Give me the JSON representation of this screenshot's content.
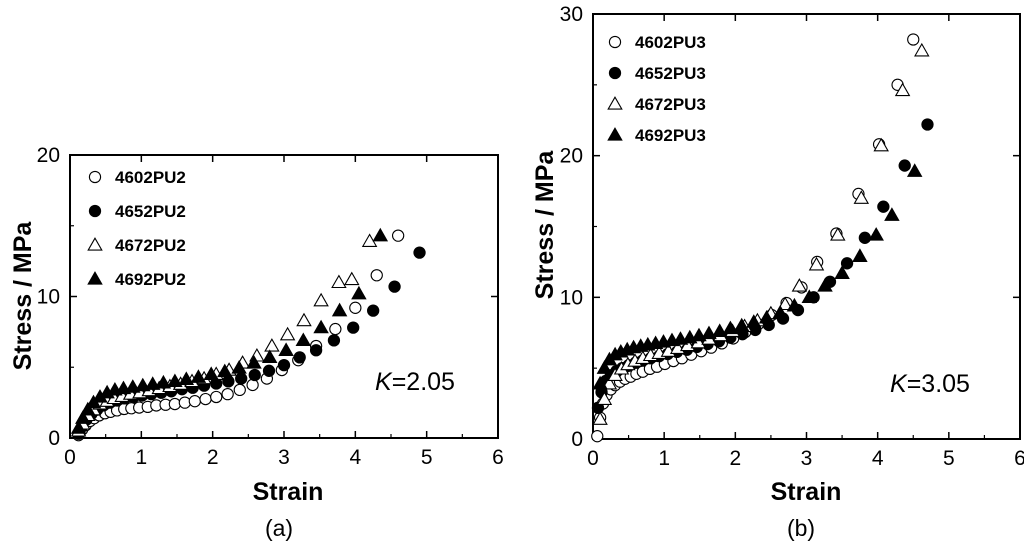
{
  "chart_data": [
    {
      "type": "scatter",
      "panel_label": "(a)",
      "xlabel": "Strain",
      "ylabel": "Stress / MPa",
      "xlim": [
        0,
        6
      ],
      "ylim": [
        0,
        20
      ],
      "xticks": [
        0,
        1,
        2,
        3,
        4,
        5,
        6
      ],
      "yticks": [
        0,
        10,
        20
      ],
      "legend_position": "top-left",
      "annotation": {
        "italic": "K",
        "rest": "=2.05"
      },
      "series": [
        {
          "name": "4602PU2",
          "marker": "open-circle",
          "x": [
            0.12,
            0.17,
            0.22,
            0.28,
            0.34,
            0.41,
            0.49,
            0.57,
            0.66,
            0.76,
            0.86,
            0.97,
            1.09,
            1.21,
            1.34,
            1.47,
            1.61,
            1.75,
            1.9,
            2.05,
            2.21,
            2.38,
            2.56,
            2.76,
            2.97,
            3.2,
            3.45,
            3.72,
            4.0,
            4.3,
            4.6
          ],
          "y": [
            0.2,
            0.6,
            0.9,
            1.2,
            1.4,
            1.6,
            1.75,
            1.85,
            1.95,
            2.05,
            2.1,
            2.15,
            2.2,
            2.3,
            2.35,
            2.4,
            2.5,
            2.6,
            2.75,
            2.9,
            3.1,
            3.4,
            3.75,
            4.2,
            4.8,
            5.5,
            6.5,
            7.7,
            9.2,
            11.5,
            14.3
          ]
        },
        {
          "name": "4652PU2",
          "marker": "filled-circle",
          "x": [
            0.12,
            0.17,
            0.23,
            0.3,
            0.38,
            0.47,
            0.56,
            0.66,
            0.77,
            0.89,
            1.01,
            1.14,
            1.28,
            1.42,
            1.57,
            1.72,
            1.88,
            2.05,
            2.22,
            2.4,
            2.59,
            2.79,
            3.0,
            3.22,
            3.45,
            3.7,
            3.97,
            4.25,
            4.55,
            4.9
          ],
          "y": [
            0.3,
            0.8,
            1.3,
            1.7,
            2.0,
            2.3,
            2.5,
            2.65,
            2.8,
            2.9,
            3.0,
            3.1,
            3.2,
            3.3,
            3.45,
            3.55,
            3.7,
            3.85,
            4.0,
            4.2,
            4.45,
            4.75,
            5.15,
            5.7,
            6.2,
            6.9,
            7.8,
            9.0,
            10.7,
            13.1
          ]
        },
        {
          "name": "4672PU2",
          "marker": "open-triangle",
          "x": [
            0.12,
            0.18,
            0.25,
            0.33,
            0.42,
            0.52,
            0.62,
            0.73,
            0.85,
            0.98,
            1.11,
            1.25,
            1.4,
            1.55,
            1.71,
            1.88,
            2.05,
            2.23,
            2.42,
            2.62,
            2.83,
            3.05,
            3.28,
            3.52,
            3.77,
            3.95,
            4.2
          ],
          "y": [
            0.5,
            1.0,
            1.6,
            2.0,
            2.4,
            2.6,
            2.8,
            2.95,
            3.1,
            3.2,
            3.35,
            3.5,
            3.65,
            3.8,
            4.0,
            4.2,
            4.5,
            4.8,
            5.3,
            5.8,
            6.5,
            7.3,
            8.3,
            9.7,
            11.0,
            11.2,
            13.9
          ]
        },
        {
          "name": "4692PU2",
          "marker": "filled-triangle",
          "x": [
            0.12,
            0.18,
            0.25,
            0.33,
            0.42,
            0.52,
            0.63,
            0.75,
            0.88,
            1.02,
            1.16,
            1.31,
            1.47,
            1.63,
            1.8,
            1.98,
            2.17,
            2.37,
            2.58,
            2.8,
            3.03,
            3.27,
            3.52,
            3.78,
            4.05,
            4.35
          ],
          "y": [
            0.7,
            1.4,
            2.0,
            2.5,
            2.9,
            3.2,
            3.4,
            3.5,
            3.6,
            3.7,
            3.8,
            3.9,
            4.0,
            4.15,
            4.3,
            4.5,
            4.7,
            4.95,
            5.3,
            5.7,
            6.2,
            6.9,
            7.8,
            9.0,
            10.2,
            14.3
          ]
        }
      ]
    },
    {
      "type": "scatter",
      "panel_label": "(b)",
      "xlabel": "Strain",
      "ylabel": "Stress / MPa",
      "xlim": [
        0,
        6
      ],
      "ylim": [
        0,
        30
      ],
      "xticks": [
        0,
        1,
        2,
        3,
        4,
        5,
        6
      ],
      "yticks": [
        0,
        10,
        20,
        30
      ],
      "legend_position": "top-left",
      "annotation": {
        "italic": "K",
        "rest": "=3.05"
      },
      "series": [
        {
          "name": "4602PU3",
          "marker": "open-circle",
          "x": [
            0.06,
            0.1,
            0.14,
            0.19,
            0.25,
            0.31,
            0.38,
            0.45,
            0.53,
            0.61,
            0.7,
            0.8,
            0.9,
            1.01,
            1.13,
            1.25,
            1.38,
            1.52,
            1.66,
            1.81,
            1.97,
            2.14,
            2.32,
            2.51,
            2.72,
            2.93,
            3.15,
            3.42,
            3.73,
            4.02,
            4.28,
            4.5
          ],
          "y": [
            0.2,
            1.5,
            2.5,
            3.1,
            3.5,
            3.8,
            4.05,
            4.25,
            4.4,
            4.6,
            4.75,
            4.95,
            5.1,
            5.3,
            5.5,
            5.7,
            5.95,
            6.2,
            6.45,
            6.75,
            7.1,
            7.55,
            8.1,
            8.75,
            9.6,
            10.7,
            12.5,
            14.5,
            17.3,
            20.8,
            25.0,
            28.2
          ]
        },
        {
          "name": "4652PU3",
          "marker": "filled-circle",
          "x": [
            0.07,
            0.12,
            0.18,
            0.25,
            0.33,
            0.41,
            0.5,
            0.6,
            0.7,
            0.81,
            0.93,
            1.05,
            1.18,
            1.32,
            1.46,
            1.61,
            1.77,
            1.93,
            2.1,
            2.28,
            2.47,
            2.67,
            2.88,
            3.1,
            3.33,
            3.57,
            3.82,
            4.08,
            4.38,
            4.7
          ],
          "y": [
            2.2,
            3.3,
            4.1,
            4.5,
            4.8,
            5.0,
            5.2,
            5.4,
            5.55,
            5.7,
            5.85,
            6.0,
            6.15,
            6.3,
            6.5,
            6.7,
            6.9,
            7.15,
            7.4,
            7.7,
            8.05,
            8.5,
            9.1,
            10.0,
            11.1,
            12.4,
            14.2,
            16.4,
            19.3,
            22.2
          ]
        },
        {
          "name": "4672PU3",
          "marker": "open-triangle",
          "x": [
            0.1,
            0.16,
            0.23,
            0.31,
            0.4,
            0.49,
            0.59,
            0.7,
            0.81,
            0.93,
            1.06,
            1.19,
            1.33,
            1.48,
            1.63,
            1.79,
            1.96,
            2.13,
            2.31,
            2.5,
            2.7,
            2.9,
            3.14,
            3.44,
            3.77,
            4.05,
            4.35,
            4.62
          ],
          "y": [
            1.4,
            2.8,
            3.9,
            4.5,
            4.95,
            5.25,
            5.5,
            5.7,
            5.9,
            6.05,
            6.2,
            6.4,
            6.6,
            6.8,
            7.05,
            7.3,
            7.6,
            7.95,
            8.35,
            8.85,
            9.5,
            10.8,
            12.3,
            14.4,
            17.0,
            20.7,
            24.6,
            27.4
          ]
        },
        {
          "name": "4692PU3",
          "marker": "filled-triangle",
          "x": [
            0.1,
            0.16,
            0.23,
            0.31,
            0.39,
            0.48,
            0.57,
            0.67,
            0.77,
            0.88,
            0.99,
            1.11,
            1.23,
            1.36,
            1.49,
            1.63,
            1.78,
            1.93,
            2.09,
            2.26,
            2.44,
            2.63,
            2.83,
            3.04,
            3.26,
            3.5,
            3.75,
            3.98,
            4.2,
            4.52
          ],
          "y": [
            3.9,
            5.0,
            5.6,
            5.95,
            6.15,
            6.3,
            6.45,
            6.55,
            6.65,
            6.75,
            6.85,
            6.95,
            7.05,
            7.15,
            7.3,
            7.45,
            7.6,
            7.8,
            8.0,
            8.25,
            8.55,
            8.9,
            9.4,
            10.0,
            10.8,
            11.7,
            12.9,
            14.4,
            15.8,
            18.9
          ]
        }
      ]
    }
  ]
}
